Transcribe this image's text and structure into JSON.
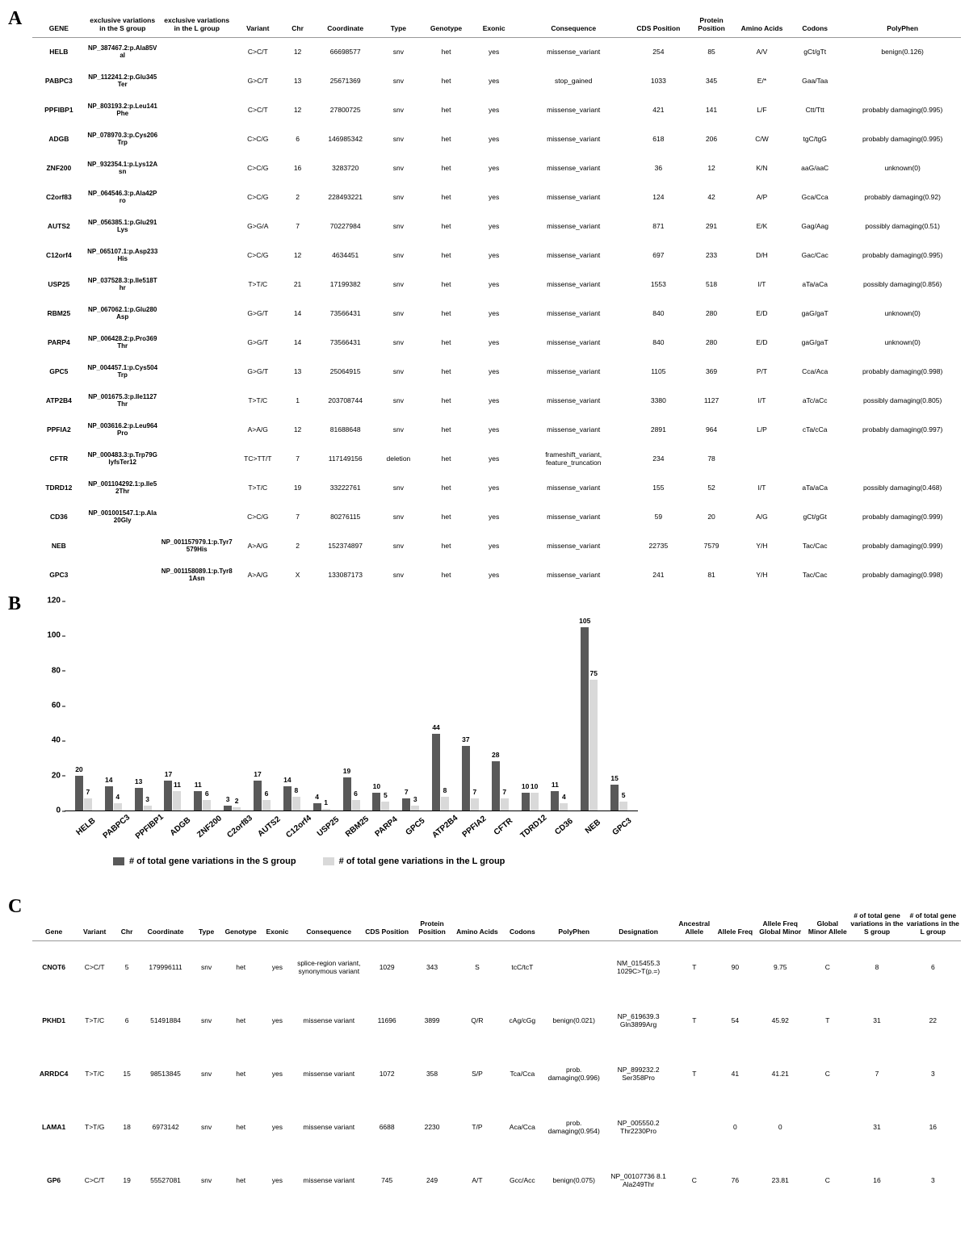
{
  "palette": {
    "darkBar": "#595959",
    "lightBar": "#d9d9d9",
    "text": "#000000"
  },
  "panelA": {
    "label": "A",
    "columns": [
      "GENE",
      "exclusive variations in the S group",
      "exclusive variations in the L group",
      "Variant",
      "Chr",
      "Coordinate",
      "Type",
      "Genotype",
      "Exonic",
      "Consequence",
      "CDS Position",
      "Protein Position",
      "Amino Acids",
      "Codons",
      "PolyPhen"
    ],
    "colWidths": [
      "50",
      "70",
      "70",
      "45",
      "30",
      "60",
      "40",
      "50",
      "40",
      "110",
      "50",
      "50",
      "45",
      "55",
      "110"
    ],
    "rows": [
      [
        "HELB",
        "NP_387467.2:p.Ala85Val",
        "",
        "C>C/T",
        "12",
        "66698577",
        "snv",
        "het",
        "yes",
        "missense_variant",
        "254",
        "85",
        "A/V",
        "gCt/gTt",
        "benign(0.126)"
      ],
      [
        "PABPC3",
        "NP_112241.2:p.Glu345Ter",
        "",
        "G>C/T",
        "13",
        "25671369",
        "snv",
        "het",
        "yes",
        "stop_gained",
        "1033",
        "345",
        "E/*",
        "Gaa/Taa",
        ""
      ],
      [
        "PPFIBP1",
        "NP_803193.2:p.Leu141Phe",
        "",
        "C>C/T",
        "12",
        "27800725",
        "snv",
        "het",
        "yes",
        "missense_variant",
        "421",
        "141",
        "L/F",
        "Ctt/Ttt",
        "probably damaging(0.995)"
      ],
      [
        "ADGB",
        "NP_078970.3:p.Cys206Trp",
        "",
        "C>C/G",
        "6",
        "146985342",
        "snv",
        "het",
        "yes",
        "missense_variant",
        "618",
        "206",
        "C/W",
        "tgC/tgG",
        "probably damaging(0.995)"
      ],
      [
        "ZNF200",
        "NP_932354.1:p.Lys12Asn",
        "",
        "C>C/G",
        "16",
        "3283720",
        "snv",
        "het",
        "yes",
        "missense_variant",
        "36",
        "12",
        "K/N",
        "aaG/aaC",
        "unknown(0)"
      ],
      [
        "C2orf83",
        "NP_064546.3:p.Ala42Pro",
        "",
        "C>C/G",
        "2",
        "228493221",
        "snv",
        "het",
        "yes",
        "missense_variant",
        "124",
        "42",
        "A/P",
        "Gca/Cca",
        "probably damaging(0.92)"
      ],
      [
        "AUTS2",
        "NP_056385.1:p.Glu291Lys",
        "",
        "G>G/A",
        "7",
        "70227984",
        "snv",
        "het",
        "yes",
        "missense_variant",
        "871",
        "291",
        "E/K",
        "Gag/Aag",
        "possibly damaging(0.51)"
      ],
      [
        "C12orf4",
        "NP_065107.1:p.Asp233His",
        "",
        "C>C/G",
        "12",
        "4634451",
        "snv",
        "het",
        "yes",
        "missense_variant",
        "697",
        "233",
        "D/H",
        "Gac/Cac",
        "probably damaging(0.995)"
      ],
      [
        "USP25",
        "NP_037528.3:p.Ile518Thr",
        "",
        "T>T/C",
        "21",
        "17199382",
        "snv",
        "het",
        "yes",
        "missense_variant",
        "1553",
        "518",
        "I/T",
        "aTa/aCa",
        "possibly damaging(0.856)"
      ],
      [
        "RBM25",
        "NP_067062.1:p.Glu280Asp",
        "",
        "G>G/T",
        "14",
        "73566431",
        "snv",
        "het",
        "yes",
        "missense_variant",
        "840",
        "280",
        "E/D",
        "gaG/gaT",
        "unknown(0)"
      ],
      [
        "PARP4",
        "NP_006428.2:p.Pro369Thr",
        "",
        "G>G/T",
        "14",
        "73566431",
        "snv",
        "het",
        "yes",
        "missense_variant",
        "840",
        "280",
        "E/D",
        "gaG/gaT",
        "unknown(0)"
      ],
      [
        "GPC5",
        "NP_004457.1:p.Cys504Trp",
        "",
        "G>G/T",
        "13",
        "25064915",
        "snv",
        "het",
        "yes",
        "missense_variant",
        "1105",
        "369",
        "P/T",
        "Cca/Aca",
        "probably damaging(0.998)"
      ],
      [
        "ATP2B4",
        "NP_001675.3:p.Ile1127Thr",
        "",
        "T>T/C",
        "1",
        "203708744",
        "snv",
        "het",
        "yes",
        "missense_variant",
        "3380",
        "1127",
        "I/T",
        "aTc/aCc",
        "possibly damaging(0.805)"
      ],
      [
        "PPFIA2",
        "NP_003616.2:p.Leu964Pro",
        "",
        "A>A/G",
        "12",
        "81688648",
        "snv",
        "het",
        "yes",
        "missense_variant",
        "2891",
        "964",
        "L/P",
        "cTa/cCa",
        "probably damaging(0.997)"
      ],
      [
        "CFTR",
        "NP_000483.3:p.Trp79GlyfsTer12",
        "",
        "TC>TT/T",
        "7",
        "117149156",
        "deletion",
        "het",
        "yes",
        "frameshift_variant, feature_truncation",
        "234",
        "78",
        "",
        "",
        ""
      ],
      [
        "TDRD12",
        "NP_001104292.1:p.Ile52Thr",
        "",
        "T>T/C",
        "19",
        "33222761",
        "snv",
        "het",
        "yes",
        "missense_variant",
        "155",
        "52",
        "I/T",
        "aTa/aCa",
        "possibly damaging(0.468)"
      ],
      [
        "CD36",
        "NP_001001547.1:p.Ala20Gly",
        "",
        "C>C/G",
        "7",
        "80276115",
        "snv",
        "het",
        "yes",
        "missense_variant",
        "59",
        "20",
        "A/G",
        "gCt/gGt",
        "probably damaging(0.999)"
      ],
      [
        "NEB",
        "",
        "NP_001157979.1:p.Tyr7579His",
        "A>A/G",
        "2",
        "152374897",
        "snv",
        "het",
        "yes",
        "missense_variant",
        "22735",
        "7579",
        "Y/H",
        "Tac/Cac",
        "probably damaging(0.999)"
      ],
      [
        "GPC3",
        "",
        "NP_001158089.1:p.Tyr81Asn",
        "A>A/G",
        "X",
        "133087173",
        "snv",
        "het",
        "yes",
        "missense_variant",
        "241",
        "81",
        "Y/H",
        "Tac/Cac",
        "probably damaging(0.998)"
      ]
    ]
  },
  "panelB": {
    "label": "B",
    "yMax": 120,
    "yTicks": [
      0,
      20,
      40,
      60,
      80,
      100,
      120
    ],
    "legend": [
      "# of total gene variations in the S group",
      "# of total gene variations in the L group"
    ],
    "categories": [
      "HELB",
      "PABPC3",
      "PPFIBP1",
      "ADGB",
      "ZNF200",
      "C2orf83",
      "AUTS2",
      "C12orf4",
      "USP25",
      "RBM25",
      "PARP4",
      "GPC5",
      "ATP2B4",
      "PPFIA2",
      "CFTR",
      "TDRD12",
      "CD36",
      "NEB",
      "GPC3"
    ],
    "seriesS": [
      20,
      14,
      13,
      17,
      11,
      3,
      17,
      14,
      4,
      19,
      10,
      7,
      44,
      37,
      28,
      10,
      11,
      105,
      15
    ],
    "seriesL": [
      7,
      4,
      3,
      11,
      6,
      2,
      6,
      8,
      1,
      6,
      5,
      3,
      8,
      7,
      7,
      10,
      4,
      75,
      5
    ]
  },
  "panelC": {
    "label": "C",
    "columns": [
      "Gene",
      "Variant",
      "Chr",
      "Coordinate",
      "Type",
      "Genotype",
      "Exonic",
      "Consequence",
      "CDS Position",
      "Protein Position",
      "Amino Acids",
      "Codons",
      "PolyPhen",
      "Designation",
      "Ancestral Allele",
      "Allele Freq",
      "Allele Freq Global Minor",
      "Global Minor Allele",
      "# of total gene variations in the S group",
      "# of total gene variations in the L group"
    ],
    "colWidths": [
      "50",
      "45",
      "30",
      "60",
      "35",
      "45",
      "40",
      "80",
      "55",
      "50",
      "55",
      "50",
      "70",
      "80",
      "50",
      "45",
      "60",
      "50",
      "65",
      "65"
    ],
    "rows": [
      [
        "CNOT6",
        "C>C/T",
        "5",
        "179996111",
        "snv",
        "het",
        "yes",
        "splice-region variant, synonymous variant",
        "1029",
        "343",
        "S",
        "tcC/tcT",
        "",
        "NM_015455.3 1029C>T(p.=)",
        "T",
        "90",
        "9.75",
        "C",
        "8",
        "6"
      ],
      [
        "PKHD1",
        "T>T/C",
        "6",
        "51491884",
        "snv",
        "het",
        "yes",
        "missense variant",
        "11696",
        "3899",
        "Q/R",
        "cAg/cGg",
        "benign(0.021)",
        "NP_619639.3 Gln3899Arg",
        "T",
        "54",
        "45.92",
        "T",
        "31",
        "22"
      ],
      [
        "ARRDC4",
        "T>T/C",
        "15",
        "98513845",
        "snv",
        "het",
        "yes",
        "missense variant",
        "1072",
        "358",
        "S/P",
        "Tca/Cca",
        "prob. damaging(0.996)",
        "NP_899232.2 Ser358Pro",
        "T",
        "41",
        "41.21",
        "C",
        "7",
        "3"
      ],
      [
        "LAMA1",
        "T>T/G",
        "18",
        "6973142",
        "snv",
        "het",
        "yes",
        "missense variant",
        "6688",
        "2230",
        "T/P",
        "Aca/Cca",
        "prob. damaging(0.954)",
        "NP_005550.2 Thr2230Pro",
        "",
        "0",
        "0",
        "",
        "31",
        "16"
      ],
      [
        "GP6",
        "C>C/T",
        "19",
        "55527081",
        "snv",
        "het",
        "yes",
        "missense variant",
        "745",
        "249",
        "A/T",
        "Gcc/Acc",
        "benign(0.075)",
        "NP_00107736 8.1 Ala249Thr",
        "C",
        "76",
        "23.81",
        "C",
        "16",
        "3"
      ]
    ]
  }
}
